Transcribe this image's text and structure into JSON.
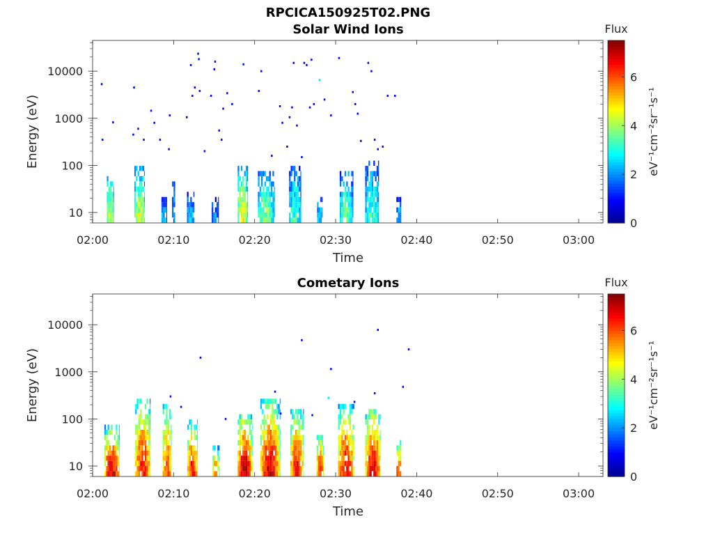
{
  "figure": {
    "title": "RPCICA150925T02.PNG"
  },
  "colormap": {
    "name": "jet",
    "stops": [
      "#00008f",
      "#0000ff",
      "#0080ff",
      "#00ffff",
      "#80ff80",
      "#ffff00",
      "#ff8000",
      "#ff0000",
      "#800000"
    ]
  },
  "chart_data": [
    {
      "type": "heatmap",
      "title": "Solar Wind Ions",
      "xlabel": "Time",
      "ylabel": "Energy (eV)",
      "x_tick_labels": [
        "02:00",
        "02:10",
        "02:20",
        "02:30",
        "02:40",
        "02:50",
        "03:00"
      ],
      "x_ticks_minutes": [
        0,
        10,
        20,
        30,
        40,
        50,
        60
      ],
      "xlim_minutes": [
        0,
        63
      ],
      "y_scale": "log",
      "y_tick_labels": [
        "10",
        "100",
        "1000",
        "10000"
      ],
      "y_ticks": [
        10,
        100,
        1000,
        10000
      ],
      "ylim": [
        6,
        45000
      ],
      "colorbar": {
        "label": "Flux",
        "unit_label": "eV⁻¹cm⁻²sr⁻¹s⁻¹",
        "ticks": [
          0,
          2,
          4,
          6
        ],
        "tick_labels": [
          "0",
          "2",
          "4",
          "6"
        ],
        "range": [
          0,
          7.5
        ]
      },
      "bursts": [
        {
          "t": 2.2,
          "width": 0.9,
          "peak_flux": 4.4,
          "max_energy": 65
        },
        {
          "t": 5.8,
          "width": 1.3,
          "peak_flux": 4.3,
          "max_energy": 100
        },
        {
          "t": 8.8,
          "width": 0.6,
          "peak_flux": 2.2,
          "max_energy": 22
        },
        {
          "t": 10.0,
          "width": 0.4,
          "peak_flux": 2.0,
          "max_energy": 60
        },
        {
          "t": 12.1,
          "width": 0.9,
          "peak_flux": 2.4,
          "max_energy": 26
        },
        {
          "t": 15.1,
          "width": 0.8,
          "peak_flux": 2.0,
          "max_energy": 22
        },
        {
          "t": 18.5,
          "width": 1.2,
          "peak_flux": 4.6,
          "max_energy": 110
        },
        {
          "t": 21.4,
          "width": 2.0,
          "peak_flux": 3.8,
          "max_energy": 80
        },
        {
          "t": 25.0,
          "width": 1.5,
          "peak_flux": 3.2,
          "max_energy": 110
        },
        {
          "t": 28.0,
          "width": 0.6,
          "peak_flux": 2.6,
          "max_energy": 22
        },
        {
          "t": 31.3,
          "width": 1.6,
          "peak_flux": 3.6,
          "max_energy": 80
        },
        {
          "t": 34.5,
          "width": 1.7,
          "peak_flux": 3.3,
          "max_energy": 120
        },
        {
          "t": 37.8,
          "width": 0.6,
          "peak_flux": 2.4,
          "max_energy": 22
        }
      ],
      "scatter": [
        {
          "t": 1.1,
          "e": 5300,
          "f": 1.0
        },
        {
          "t": 1.2,
          "e": 350,
          "f": 1.0
        },
        {
          "t": 2.5,
          "e": 820,
          "f": 1.0
        },
        {
          "t": 5.1,
          "e": 4500,
          "f": 1.0
        },
        {
          "t": 5.0,
          "e": 450,
          "f": 1.0
        },
        {
          "t": 5.6,
          "e": 600,
          "f": 1.0
        },
        {
          "t": 6.3,
          "e": 350,
          "f": 1.0
        },
        {
          "t": 7.2,
          "e": 1450,
          "f": 1.0
        },
        {
          "t": 7.6,
          "e": 800,
          "f": 1.0
        },
        {
          "t": 8.3,
          "e": 350,
          "f": 1.0
        },
        {
          "t": 9.4,
          "e": 220,
          "f": 1.0
        },
        {
          "t": 9.5,
          "e": 1150,
          "f": 1.0
        },
        {
          "t": 11.6,
          "e": 1050,
          "f": 1.0
        },
        {
          "t": 12.1,
          "e": 13500,
          "f": 1.0
        },
        {
          "t": 12.3,
          "e": 3000,
          "f": 1.0
        },
        {
          "t": 12.6,
          "e": 4500,
          "f": 1.0
        },
        {
          "t": 13.0,
          "e": 23500,
          "f": 1.0
        },
        {
          "t": 13.1,
          "e": 18000,
          "f": 1.0
        },
        {
          "t": 13.2,
          "e": 3800,
          "f": 1.0
        },
        {
          "t": 14.6,
          "e": 3000,
          "f": 1.0
        },
        {
          "t": 15.1,
          "e": 16000,
          "f": 1.0
        },
        {
          "t": 15.0,
          "e": 11000,
          "f": 1.0
        },
        {
          "t": 15.6,
          "e": 550,
          "f": 1.0
        },
        {
          "t": 15.9,
          "e": 350,
          "f": 1.0
        },
        {
          "t": 16.1,
          "e": 1600,
          "f": 1.0
        },
        {
          "t": 16.6,
          "e": 3400,
          "f": 1.0
        },
        {
          "t": 17.2,
          "e": 2000,
          "f": 1.0
        },
        {
          "t": 18.6,
          "e": 14000,
          "f": 1.0
        },
        {
          "t": 20.5,
          "e": 3800,
          "f": 1.0
        },
        {
          "t": 20.8,
          "e": 10000,
          "f": 1.0
        },
        {
          "t": 23.1,
          "e": 1800,
          "f": 1.0
        },
        {
          "t": 23.4,
          "e": 800,
          "f": 1.0
        },
        {
          "t": 24.3,
          "e": 1050,
          "f": 1.0
        },
        {
          "t": 24.6,
          "e": 1700,
          "f": 1.0
        },
        {
          "t": 24.8,
          "e": 15000,
          "f": 1.0
        },
        {
          "t": 25.2,
          "e": 700,
          "f": 1.0
        },
        {
          "t": 26.1,
          "e": 15000,
          "f": 1.0
        },
        {
          "t": 26.4,
          "e": 13500,
          "f": 1.0
        },
        {
          "t": 26.8,
          "e": 1700,
          "f": 1.0
        },
        {
          "t": 27.0,
          "e": 17500,
          "f": 1.0
        },
        {
          "t": 27.3,
          "e": 2000,
          "f": 1.0
        },
        {
          "t": 28.0,
          "e": 6500,
          "f": 2.6
        },
        {
          "t": 28.6,
          "e": 2500,
          "f": 1.0
        },
        {
          "t": 29.4,
          "e": 1150,
          "f": 1.0
        },
        {
          "t": 30.4,
          "e": 19000,
          "f": 1.0
        },
        {
          "t": 32.1,
          "e": 3600,
          "f": 1.0
        },
        {
          "t": 32.4,
          "e": 2000,
          "f": 1.0
        },
        {
          "t": 32.7,
          "e": 1250,
          "f": 1.0
        },
        {
          "t": 33.1,
          "e": 330,
          "f": 1.0
        },
        {
          "t": 34.0,
          "e": 15000,
          "f": 1.0
        },
        {
          "t": 34.4,
          "e": 10000,
          "f": 1.0
        },
        {
          "t": 34.8,
          "e": 350,
          "f": 1.0
        },
        {
          "t": 35.2,
          "e": 220,
          "f": 1.0
        },
        {
          "t": 35.8,
          "e": 250,
          "f": 1.0
        },
        {
          "t": 36.4,
          "e": 3000,
          "f": 1.0
        },
        {
          "t": 37.3,
          "e": 3000,
          "f": 1.0
        },
        {
          "t": 22.1,
          "e": 160,
          "f": 1.0
        },
        {
          "t": 24.0,
          "e": 250,
          "f": 1.0
        },
        {
          "t": 25.8,
          "e": 150,
          "f": 1.0
        },
        {
          "t": 13.8,
          "e": 200,
          "f": 1.0
        }
      ]
    },
    {
      "type": "heatmap",
      "title": "Cometary Ions",
      "xlabel": "Time",
      "ylabel": "Energy (eV)",
      "x_tick_labels": [
        "02:00",
        "02:10",
        "02:20",
        "02:30",
        "02:40",
        "02:50",
        "03:00"
      ],
      "x_ticks_minutes": [
        0,
        10,
        20,
        30,
        40,
        50,
        60
      ],
      "xlim_minutes": [
        0,
        63
      ],
      "y_scale": "log",
      "y_tick_labels": [
        "10",
        "100",
        "1000",
        "10000"
      ],
      "y_ticks": [
        10,
        100,
        1000,
        10000
      ],
      "ylim": [
        6,
        45000
      ],
      "colorbar": {
        "label": "Flux",
        "unit_label": "eV⁻¹cm⁻²sr⁻¹s⁻¹",
        "ticks": [
          0,
          2,
          4,
          6
        ],
        "tick_labels": [
          "0",
          "2",
          "4",
          "6"
        ],
        "range": [
          0,
          7.5
        ]
      },
      "bursts": [
        {
          "t": 2.4,
          "width": 1.9,
          "peak_flux": 6.8,
          "max_energy": 70
        },
        {
          "t": 6.2,
          "width": 1.9,
          "peak_flux": 6.5,
          "max_energy": 300
        },
        {
          "t": 9.2,
          "width": 1.1,
          "peak_flux": 6.0,
          "max_energy": 220
        },
        {
          "t": 12.3,
          "width": 1.2,
          "peak_flux": 6.5,
          "max_energy": 90
        },
        {
          "t": 15.2,
          "width": 0.8,
          "peak_flux": 5.6,
          "max_energy": 25
        },
        {
          "t": 18.8,
          "width": 1.8,
          "peak_flux": 7.0,
          "max_energy": 140
        },
        {
          "t": 21.9,
          "width": 2.4,
          "peak_flux": 6.9,
          "max_energy": 250
        },
        {
          "t": 25.2,
          "width": 1.6,
          "peak_flux": 6.6,
          "max_energy": 170
        },
        {
          "t": 28.1,
          "width": 0.9,
          "peak_flux": 6.4,
          "max_energy": 50
        },
        {
          "t": 31.3,
          "width": 2.0,
          "peak_flux": 6.6,
          "max_energy": 200
        },
        {
          "t": 34.6,
          "width": 1.9,
          "peak_flux": 6.8,
          "max_energy": 180
        },
        {
          "t": 37.8,
          "width": 0.6,
          "peak_flux": 6.2,
          "max_energy": 32
        }
      ],
      "scatter": [
        {
          "t": 13.3,
          "e": 2000,
          "f": 1.0
        },
        {
          "t": 16.4,
          "e": 100,
          "f": 1.0
        },
        {
          "t": 25.8,
          "e": 4700,
          "f": 1.0
        },
        {
          "t": 29.4,
          "e": 1150,
          "f": 1.0
        },
        {
          "t": 35.2,
          "e": 7800,
          "f": 1.0
        },
        {
          "t": 38.3,
          "e": 480,
          "f": 1.0
        },
        {
          "t": 39.0,
          "e": 3000,
          "f": 1.0
        },
        {
          "t": 9.6,
          "e": 300,
          "f": 1.0
        },
        {
          "t": 22.5,
          "e": 380,
          "f": 1.0
        },
        {
          "t": 29.1,
          "e": 280,
          "f": 2.6
        },
        {
          "t": 34.8,
          "e": 350,
          "f": 1.0
        },
        {
          "t": 10.9,
          "e": 180,
          "f": 1.0
        },
        {
          "t": 23.2,
          "e": 130,
          "f": 1.0
        },
        {
          "t": 32.3,
          "e": 230,
          "f": 1.0
        },
        {
          "t": 27.1,
          "e": 120,
          "f": 1.0
        }
      ]
    }
  ]
}
